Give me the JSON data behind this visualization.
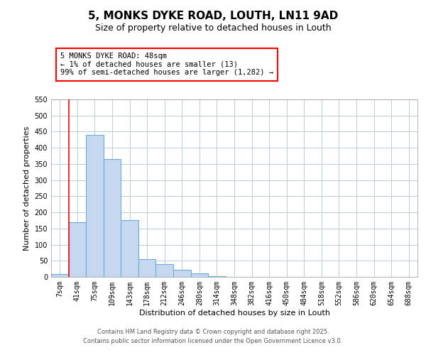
{
  "title": "5, MONKS DYKE ROAD, LOUTH, LN11 9AD",
  "subtitle": "Size of property relative to detached houses in Louth",
  "xlabel": "Distribution of detached houses by size in Louth",
  "ylabel": "Number of detached properties",
  "bar_color": "#c5d8ef",
  "bar_edge_color": "#6aaed6",
  "categories": [
    "7sqm",
    "41sqm",
    "75sqm",
    "109sqm",
    "143sqm",
    "178sqm",
    "212sqm",
    "246sqm",
    "280sqm",
    "314sqm",
    "348sqm",
    "382sqm",
    "416sqm",
    "450sqm",
    "484sqm",
    "518sqm",
    "552sqm",
    "586sqm",
    "620sqm",
    "654sqm",
    "688sqm"
  ],
  "values": [
    8,
    170,
    440,
    365,
    175,
    55,
    40,
    22,
    10,
    2,
    1,
    0,
    0,
    0,
    0,
    0,
    0,
    0,
    0,
    0,
    0
  ],
  "ylim": [
    0,
    550
  ],
  "yticks": [
    0,
    50,
    100,
    150,
    200,
    250,
    300,
    350,
    400,
    450,
    500,
    550
  ],
  "annotation_text": "5 MONKS DYKE ROAD: 48sqm\n← 1% of detached houses are smaller (13)\n99% of semi-detached houses are larger (1,282) →",
  "red_line_x": 0.5,
  "footer1": "Contains HM Land Registry data © Crown copyright and database right 2025.",
  "footer2": "Contains public sector information licensed under the Open Government Licence v3.0.",
  "background_color": "#ffffff",
  "grid_color": "#b8cfe0",
  "title_fontsize": 11,
  "subtitle_fontsize": 9,
  "axis_label_fontsize": 8,
  "tick_fontsize": 7,
  "annotation_fontsize": 7.5,
  "footer_fontsize": 6
}
